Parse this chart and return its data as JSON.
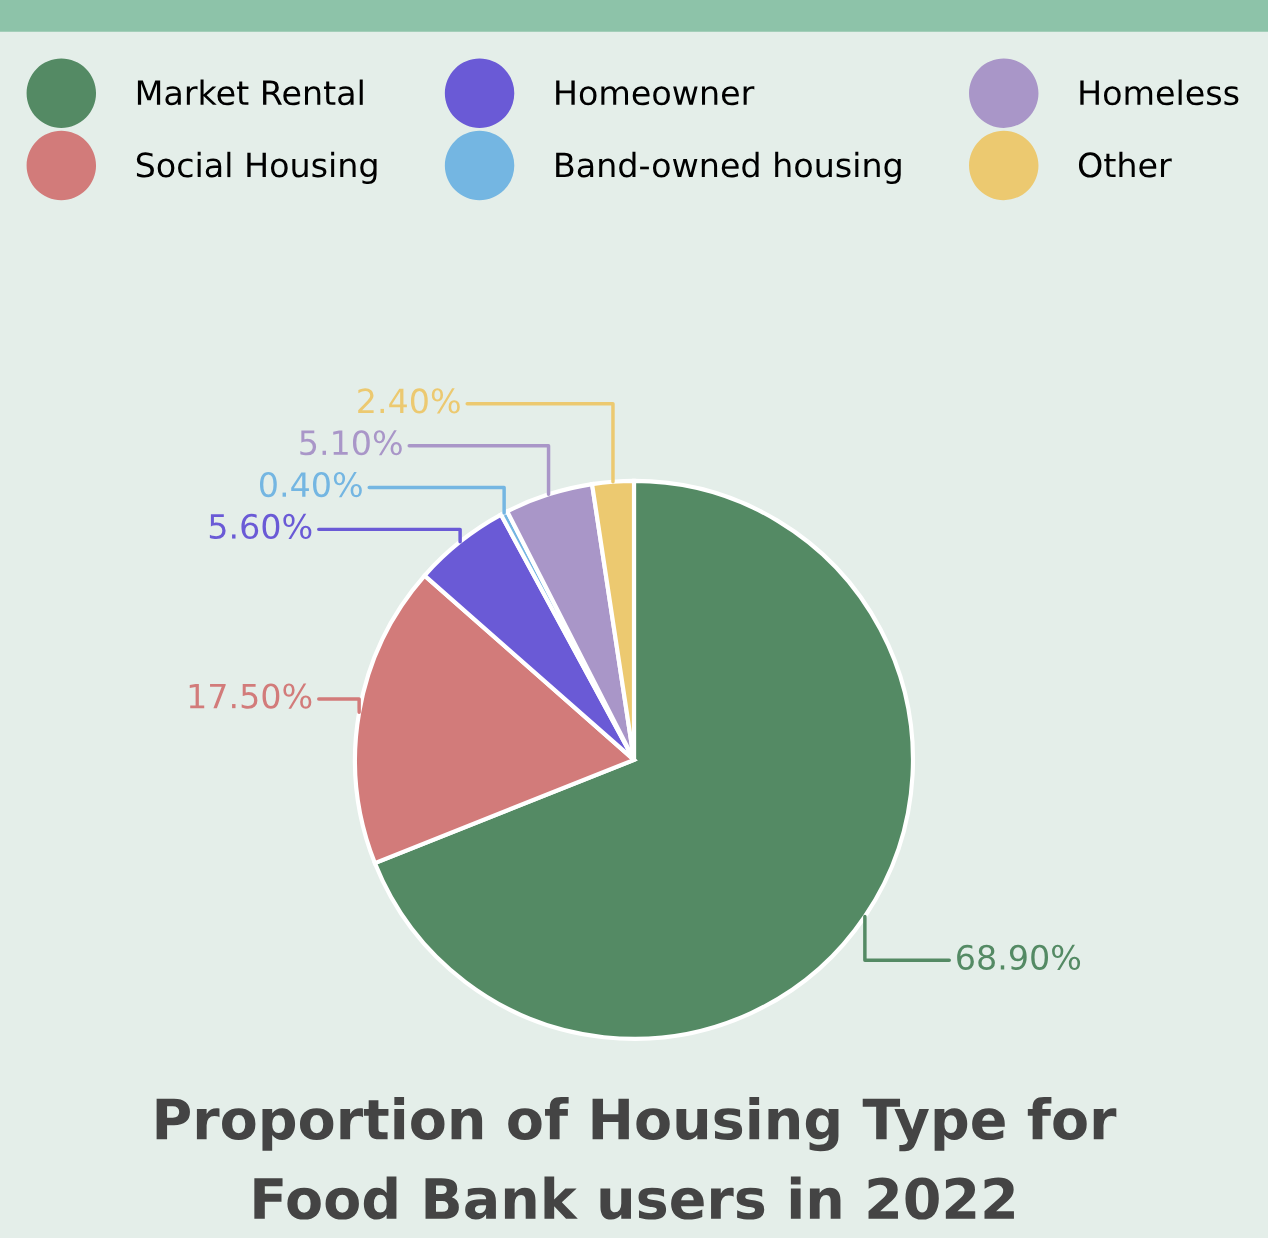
{
  "chart_data": {
    "type": "pie",
    "title": "Proportion of Housing Type for\nFood Bank users in 2022",
    "categories": [
      "Market Rental",
      "Social Housing",
      "Homeowner",
      "Band-owned housing",
      "Homeless",
      "Other"
    ],
    "values": [
      68.9,
      17.5,
      5.6,
      0.4,
      5.1,
      2.4
    ],
    "colors": [
      "#548a64",
      "#d27b7a",
      "#6a5ad6",
      "#74b6e2",
      "#a996c8",
      "#ecc970"
    ],
    "value_labels": [
      "68.90%",
      "17.50%",
      "5.60%",
      "0.40%",
      "5.10%",
      "2.40%"
    ],
    "legend": "top"
  }
}
